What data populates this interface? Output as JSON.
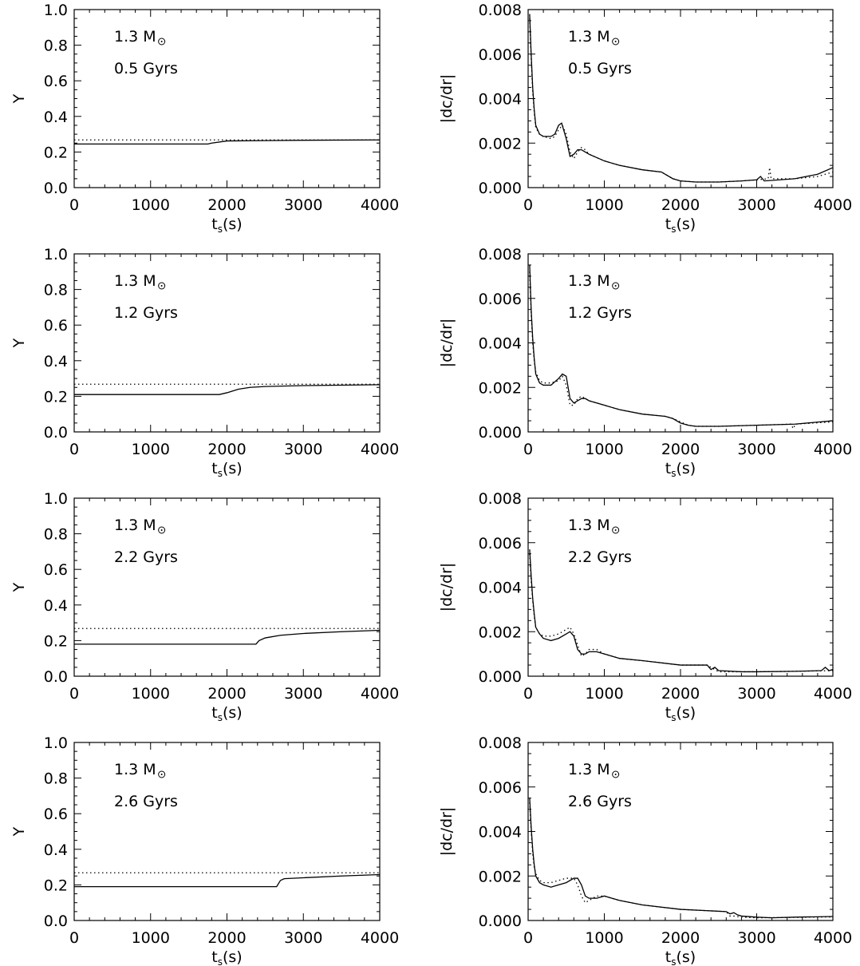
{
  "chart_data": [
    {
      "type": "line",
      "panel": "Y",
      "ylabel": "Y",
      "xlabel_main": "t",
      "xlabel_sub": "s",
      "xlabel_unit": "(s)",
      "xlim": [
        0,
        4000
      ],
      "ylim": [
        0.0,
        1.0
      ],
      "xticks": [
        0,
        1000,
        2000,
        3000,
        4000
      ],
      "xtick_labels": [
        "0",
        "1000",
        "2000",
        "3000",
        "4000"
      ],
      "yticks": [
        0.0,
        0.2,
        0.4,
        0.6,
        0.8,
        1.0
      ],
      "ytick_labels": [
        "0.0",
        "0.2",
        "0.4",
        "0.6",
        "0.8",
        "1.0"
      ],
      "annotations": [
        "1.3 M",
        "0.5 Gyrs"
      ],
      "series": [
        {
          "style": "solid",
          "x": [
            0,
            1750,
            1800,
            2000,
            2500,
            3000,
            4000
          ],
          "y": [
            0.245,
            0.245,
            0.25,
            0.262,
            0.264,
            0.266,
            0.268
          ]
        },
        {
          "style": "dotted",
          "x": [
            0,
            4000
          ],
          "y": [
            0.268,
            0.268
          ]
        }
      ]
    },
    {
      "type": "line",
      "panel": "dc",
      "ylabel": "|dc/dr|",
      "xlabel_main": "t",
      "xlabel_sub": "s",
      "xlabel_unit": "(s)",
      "xlim": [
        0,
        4000
      ],
      "ylim": [
        0.0,
        0.008
      ],
      "xticks": [
        0,
        1000,
        2000,
        3000,
        4000
      ],
      "xtick_labels": [
        "0",
        "1000",
        "2000",
        "3000",
        "4000"
      ],
      "yticks": [
        0.0,
        0.002,
        0.004,
        0.006,
        0.008
      ],
      "ytick_labels": [
        "0.000",
        "0.002",
        "0.004",
        "0.006",
        "0.008"
      ],
      "annotations": [
        "1.3 M",
        "0.5 Gyrs"
      ],
      "series": [
        {
          "style": "solid",
          "x": [
            20,
            40,
            60,
            80,
            100,
            150,
            200,
            300,
            350,
            400,
            440,
            500,
            550,
            600,
            650,
            700,
            750,
            800,
            1000,
            1200,
            1500,
            1750,
            1800,
            1900,
            2000,
            2200,
            2500,
            2800,
            3000,
            3050,
            3100,
            3500,
            3800,
            4000
          ],
          "y": [
            0.0078,
            0.006,
            0.0045,
            0.0035,
            0.0028,
            0.0024,
            0.0023,
            0.0023,
            0.0024,
            0.0028,
            0.0029,
            0.0022,
            0.0014,
            0.0015,
            0.0017,
            0.0017,
            0.0016,
            0.0015,
            0.0012,
            0.001,
            0.0008,
            0.0007,
            0.0006,
            0.0004,
            0.0003,
            0.00025,
            0.00025,
            0.0003,
            0.00035,
            0.0005,
            0.0003,
            0.0004,
            0.0006,
            0.0009
          ]
        },
        {
          "style": "dotted",
          "x": [
            20,
            40,
            60,
            80,
            100,
            150,
            200,
            300,
            350,
            400,
            450,
            500,
            550,
            600,
            650,
            700,
            750,
            800,
            1000,
            1200,
            1500,
            1750,
            1800,
            1900,
            2000,
            2200,
            2500,
            2800,
            3000,
            3150,
            3170,
            3190,
            3250,
            3500,
            3800,
            4000
          ],
          "y": [
            0.0076,
            0.0058,
            0.0043,
            0.0034,
            0.0027,
            0.0024,
            0.0023,
            0.0022,
            0.0023,
            0.0026,
            0.0028,
            0.0024,
            0.0016,
            0.0013,
            0.0016,
            0.0018,
            0.0017,
            0.0015,
            0.0012,
            0.001,
            0.0008,
            0.0007,
            0.0006,
            0.0004,
            0.0003,
            0.00025,
            0.00025,
            0.0003,
            0.00035,
            0.0004,
            0.0009,
            0.0004,
            0.0004,
            0.0004,
            0.0005,
            0.0007
          ]
        }
      ]
    },
    {
      "type": "line",
      "panel": "Y",
      "ylabel": "Y",
      "xlabel_main": "t",
      "xlabel_sub": "s",
      "xlabel_unit": "(s)",
      "xlim": [
        0,
        4000
      ],
      "ylim": [
        0.0,
        1.0
      ],
      "xticks": [
        0,
        1000,
        2000,
        3000,
        4000
      ],
      "xtick_labels": [
        "0",
        "1000",
        "2000",
        "3000",
        "4000"
      ],
      "yticks": [
        0.0,
        0.2,
        0.4,
        0.6,
        0.8,
        1.0
      ],
      "ytick_labels": [
        "0.0",
        "0.2",
        "0.4",
        "0.6",
        "0.8",
        "1.0"
      ],
      "annotations": [
        "1.3 M",
        "1.2 Gyrs"
      ],
      "series": [
        {
          "style": "solid",
          "x": [
            0,
            1900,
            2000,
            2150,
            2300,
            2500,
            3000,
            4000
          ],
          "y": [
            0.21,
            0.21,
            0.22,
            0.24,
            0.25,
            0.255,
            0.26,
            0.265
          ]
        },
        {
          "style": "dotted",
          "x": [
            0,
            4000
          ],
          "y": [
            0.268,
            0.268
          ]
        }
      ]
    },
    {
      "type": "line",
      "panel": "dc",
      "ylabel": "|dc/dr|",
      "xlabel_main": "t",
      "xlabel_sub": "s",
      "xlabel_unit": "(s)",
      "xlim": [
        0,
        4000
      ],
      "ylim": [
        0.0,
        0.008
      ],
      "xticks": [
        0,
        1000,
        2000,
        3000,
        4000
      ],
      "xtick_labels": [
        "0",
        "1000",
        "2000",
        "3000",
        "4000"
      ],
      "yticks": [
        0.0,
        0.002,
        0.004,
        0.006,
        0.008
      ],
      "ytick_labels": [
        "0.000",
        "0.002",
        "0.004",
        "0.006",
        "0.008"
      ],
      "annotations": [
        "1.3 M",
        "1.2 Gyrs"
      ],
      "series": [
        {
          "style": "solid",
          "x": [
            20,
            40,
            60,
            80,
            100,
            150,
            200,
            300,
            400,
            450,
            500,
            550,
            600,
            650,
            700,
            750,
            800,
            1000,
            1200,
            1500,
            1800,
            1900,
            2000,
            2100,
            2200,
            2500,
            3000,
            3500,
            4000
          ],
          "y": [
            0.0075,
            0.0055,
            0.0042,
            0.0033,
            0.0026,
            0.0022,
            0.0021,
            0.0021,
            0.0024,
            0.0026,
            0.0025,
            0.0015,
            0.0013,
            0.0014,
            0.0015,
            0.0015,
            0.0014,
            0.0012,
            0.001,
            0.0008,
            0.0007,
            0.0006,
            0.0004,
            0.0003,
            0.00025,
            0.00025,
            0.0003,
            0.00035,
            0.0005
          ]
        },
        {
          "style": "dotted",
          "x": [
            20,
            40,
            60,
            80,
            100,
            150,
            200,
            300,
            400,
            450,
            500,
            550,
            600,
            650,
            700,
            750,
            800,
            1000,
            1200,
            1500,
            1800,
            1900,
            2000,
            2100,
            2200,
            2500,
            3000,
            3450,
            3480,
            3510,
            4000
          ],
          "y": [
            0.0072,
            0.0053,
            0.004,
            0.0032,
            0.0027,
            0.0023,
            0.0022,
            0.0022,
            0.0023,
            0.0025,
            0.0021,
            0.0012,
            0.0012,
            0.0015,
            0.0016,
            0.0015,
            0.0014,
            0.0012,
            0.001,
            0.0008,
            0.0007,
            0.0006,
            0.00045,
            0.0003,
            0.00025,
            0.00025,
            0.0003,
            0.00035,
            0.00015,
            0.00035,
            0.00045
          ]
        }
      ]
    },
    {
      "type": "line",
      "panel": "Y",
      "ylabel": "Y",
      "xlabel_main": "t",
      "xlabel_sub": "s",
      "xlabel_unit": "(s)",
      "xlim": [
        0,
        4000
      ],
      "ylim": [
        0.0,
        1.0
      ],
      "xticks": [
        0,
        1000,
        2000,
        3000,
        4000
      ],
      "xtick_labels": [
        "0",
        "1000",
        "2000",
        "3000",
        "4000"
      ],
      "yticks": [
        0.0,
        0.2,
        0.4,
        0.6,
        0.8,
        1.0
      ],
      "ytick_labels": [
        "0.0",
        "0.2",
        "0.4",
        "0.6",
        "0.8",
        "1.0"
      ],
      "annotations": [
        "1.3 M",
        "2.2 Gyrs"
      ],
      "series": [
        {
          "style": "solid",
          "x": [
            0,
            2380,
            2420,
            2500,
            2700,
            3000,
            3500,
            4000
          ],
          "y": [
            0.18,
            0.18,
            0.2,
            0.215,
            0.23,
            0.24,
            0.25,
            0.258
          ]
        },
        {
          "style": "dotted",
          "x": [
            0,
            4000
          ],
          "y": [
            0.268,
            0.268
          ]
        }
      ]
    },
    {
      "type": "line",
      "panel": "dc",
      "ylabel": "|dc/dr|",
      "xlabel_main": "t",
      "xlabel_sub": "s",
      "xlabel_unit": "(s)",
      "xlim": [
        0,
        4000
      ],
      "ylim": [
        0.0,
        0.008
      ],
      "xticks": [
        0,
        1000,
        2000,
        3000,
        4000
      ],
      "xtick_labels": [
        "0",
        "1000",
        "2000",
        "3000",
        "4000"
      ],
      "yticks": [
        0.0,
        0.002,
        0.004,
        0.006,
        0.008
      ],
      "ytick_labels": [
        "0.000",
        "0.002",
        "0.004",
        "0.006",
        "0.008"
      ],
      "annotations": [
        "1.3 M",
        "2.2 Gyrs"
      ],
      "series": [
        {
          "style": "solid",
          "x": [
            20,
            40,
            60,
            80,
            100,
            150,
            200,
            300,
            400,
            500,
            550,
            600,
            650,
            700,
            750,
            800,
            900,
            1000,
            1200,
            1500,
            2000,
            2350,
            2400,
            2450,
            2500,
            2800,
            3000,
            3500,
            3850,
            3900,
            3950,
            4000
          ],
          "y": [
            0.0057,
            0.0045,
            0.0035,
            0.0028,
            0.0022,
            0.0019,
            0.0017,
            0.0016,
            0.0017,
            0.0019,
            0.002,
            0.0018,
            0.0012,
            0.001,
            0.001,
            0.0011,
            0.0011,
            0.001,
            0.0008,
            0.0007,
            0.0005,
            0.0005,
            0.0003,
            0.0004,
            0.00025,
            0.0002,
            0.0002,
            0.00022,
            0.00025,
            0.0004,
            0.00025,
            0.0003
          ]
        },
        {
          "style": "dotted",
          "x": [
            20,
            40,
            60,
            80,
            100,
            150,
            200,
            300,
            400,
            500,
            550,
            600,
            650,
            700,
            750,
            800,
            900,
            1000,
            1200,
            1500,
            2000,
            2350,
            2400,
            2500,
            2800,
            3000,
            3500,
            4000
          ],
          "y": [
            0.0055,
            0.0043,
            0.0034,
            0.0027,
            0.0022,
            0.0019,
            0.0018,
            0.0018,
            0.0019,
            0.0021,
            0.0022,
            0.0019,
            0.0014,
            0.0009,
            0.001,
            0.0012,
            0.0012,
            0.001,
            0.0008,
            0.0007,
            0.0005,
            0.0005,
            0.0004,
            0.0002,
            0.0002,
            0.0002,
            0.00022,
            0.00025
          ]
        }
      ]
    },
    {
      "type": "line",
      "panel": "Y",
      "ylabel": "Y",
      "xlabel_main": "t",
      "xlabel_sub": "s",
      "xlabel_unit": "(s)",
      "xlim": [
        0,
        4000
      ],
      "ylim": [
        0.0,
        1.0
      ],
      "xticks": [
        0,
        1000,
        2000,
        3000,
        4000
      ],
      "xtick_labels": [
        "0",
        "1000",
        "2000",
        "3000",
        "4000"
      ],
      "yticks": [
        0.0,
        0.2,
        0.4,
        0.6,
        0.8,
        1.0
      ],
      "ytick_labels": [
        "0.0",
        "0.2",
        "0.4",
        "0.6",
        "0.8",
        "1.0"
      ],
      "annotations": [
        "1.3 M",
        "2.6 Gyrs"
      ],
      "series": [
        {
          "style": "solid",
          "x": [
            0,
            2650,
            2700,
            2750,
            3000,
            3500,
            4000
          ],
          "y": [
            0.19,
            0.19,
            0.225,
            0.235,
            0.24,
            0.25,
            0.258
          ]
        },
        {
          "style": "dotted",
          "x": [
            0,
            4000
          ],
          "y": [
            0.268,
            0.268
          ]
        }
      ]
    },
    {
      "type": "line",
      "panel": "dc",
      "ylabel": "|dc/dr|",
      "xlabel_main": "t",
      "xlabel_sub": "s",
      "xlabel_unit": "(s)",
      "xlim": [
        0,
        4000
      ],
      "ylim": [
        0.0,
        0.008
      ],
      "xticks": [
        0,
        1000,
        2000,
        3000,
        4000
      ],
      "xtick_labels": [
        "0",
        "1000",
        "2000",
        "3000",
        "4000"
      ],
      "yticks": [
        0.0,
        0.002,
        0.004,
        0.006,
        0.008
      ],
      "ytick_labels": [
        "0.000",
        "0.002",
        "0.004",
        "0.006",
        "0.008"
      ],
      "annotations": [
        "1.3 M",
        "2.6 Gyrs"
      ],
      "series": [
        {
          "style": "solid",
          "x": [
            20,
            40,
            60,
            80,
            100,
            150,
            200,
            300,
            400,
            500,
            600,
            650,
            700,
            750,
            800,
            900,
            1000,
            1200,
            1500,
            2000,
            2600,
            2650,
            2700,
            2750,
            2800,
            3000,
            3200,
            3500,
            4000
          ],
          "y": [
            0.0055,
            0.0042,
            0.0032,
            0.0025,
            0.002,
            0.0017,
            0.0016,
            0.0015,
            0.0016,
            0.0017,
            0.0019,
            0.0019,
            0.0016,
            0.0011,
            0.001,
            0.001,
            0.0011,
            0.0009,
            0.0007,
            0.0005,
            0.0004,
            0.0003,
            0.00035,
            0.00025,
            0.0002,
            0.00015,
            0.00012,
            0.00015,
            0.00018
          ]
        },
        {
          "style": "dotted",
          "x": [
            20,
            40,
            60,
            80,
            100,
            150,
            200,
            300,
            400,
            500,
            600,
            650,
            700,
            750,
            800,
            900,
            1000,
            1200,
            1500,
            2000,
            2600,
            2650,
            2700,
            2800,
            3000,
            3500,
            4000
          ],
          "y": [
            0.0053,
            0.004,
            0.003,
            0.0024,
            0.0021,
            0.0018,
            0.0017,
            0.0017,
            0.0018,
            0.0019,
            0.0019,
            0.0016,
            0.0011,
            0.0008,
            0.0009,
            0.0011,
            0.0011,
            0.0009,
            0.0007,
            0.0005,
            0.0004,
            0.0002,
            0.0002,
            0.00015,
            0.00012,
            0.00014,
            0.00016
          ]
        }
      ]
    }
  ]
}
